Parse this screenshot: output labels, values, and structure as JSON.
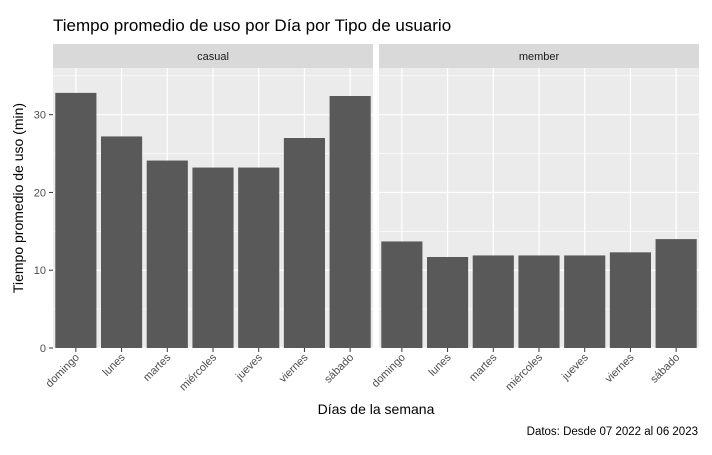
{
  "chart_data": {
    "type": "bar",
    "title": "Tiempo promedio de uso por Día por Tipo de usuario",
    "xlabel": "Días de la semana",
    "ylabel": "Tiempo promedio de uso (min)",
    "caption": "Datos: Desde 07 2022 al 06 2023",
    "categories": [
      "domingo",
      "lunes",
      "martes",
      "miércoles",
      "jueves",
      "viernes",
      "sábado"
    ],
    "ylim": [
      0,
      36
    ],
    "yticks": [
      0,
      10,
      20,
      30
    ],
    "grid": true,
    "bar_color": "#595959",
    "panel_background": "#ebebeb",
    "strip_background": "#d9d9d9",
    "panels": [
      {
        "name": "casual",
        "values": [
          32.8,
          27.2,
          24.1,
          23.2,
          23.2,
          27.0,
          32.4
        ]
      },
      {
        "name": "member",
        "values": [
          13.7,
          11.7,
          11.9,
          11.9,
          11.9,
          12.3,
          14.0
        ]
      }
    ]
  }
}
